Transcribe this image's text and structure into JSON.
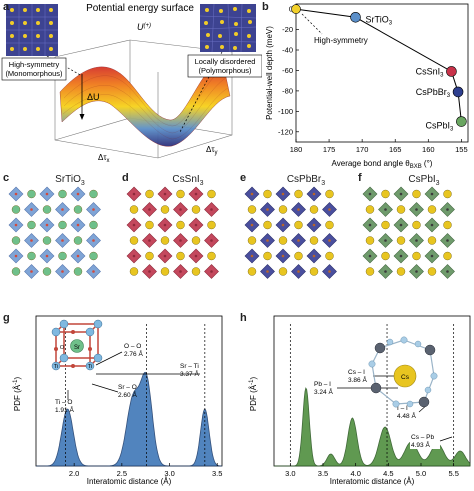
{
  "panel_labels": {
    "a": "a",
    "b": "b",
    "c": "c",
    "d": "d",
    "e": "e",
    "f": "f",
    "g": "g",
    "h": "h"
  },
  "panel_a": {
    "title": "Potential energy surface",
    "left_box_line1": "High-symmetry",
    "left_box_line2": "(Monomorphous)",
    "right_box_line1": "Locally disordered",
    "right_box_line2": "(Polymorphous)",
    "u_label": "U",
    "u_sup": "(+)",
    "delta_u": "ΔU",
    "tau_x": "Δτ",
    "tau_x_sub": "x",
    "tau_y": "Δτ",
    "tau_y_sub": "y"
  },
  "panel_b": {
    "ylabel": "Potential-well depth (meV)",
    "xlabel": "Average bond angle θ",
    "xlabel_sub": "BXB",
    "xlabel_unit": " (°)",
    "high_symmetry_label": "High-symmetry",
    "xticks": [
      "180",
      "175",
      "170",
      "165",
      "160",
      "155"
    ],
    "yticks": [
      "0",
      "-20",
      "-40",
      "-60",
      "-80",
      "-100",
      "-120"
    ]
  },
  "chart_data": {
    "type": "scatter",
    "xlabel": "Average bond angle θBXB (°)",
    "ylabel": "Potential-well depth (meV)",
    "xlim": [
      180,
      154
    ],
    "ylim": [
      -130,
      5
    ],
    "points": [
      {
        "name": "SrTiO3",
        "label": "SrTiO",
        "sub": "3",
        "x": 171,
        "y": -8,
        "color": "#5b8fc9"
      },
      {
        "name": "CsSnI3",
        "label": "CsSnI",
        "sub": "3",
        "x": 156.5,
        "y": -61,
        "color": "#c8334a"
      },
      {
        "name": "CsPbBr3",
        "label": "CsPbBr",
        "sub": "3",
        "x": 155.5,
        "y": -81,
        "color": "#2e3f8f"
      },
      {
        "name": "CsPbI3",
        "label": "CsPbI",
        "sub": "3",
        "x": 155,
        "y": -110,
        "color": "#6aa661"
      }
    ],
    "origin": {
      "x": 180,
      "y": 0,
      "color": "#f2d02a"
    }
  },
  "structures": [
    {
      "name": "SrTiO",
      "sub": "3",
      "oct": "#7fa4d6",
      "edge": "#5a79b0",
      "ball": "#6fc08a",
      "corner": "#d24a3c"
    },
    {
      "name": "CsSnI",
      "sub": "3",
      "oct": "#c4485d",
      "edge": "#8f2a3b",
      "ball": "#e8c520",
      "corner": "#8f2a3b"
    },
    {
      "name": "CsPbBr",
      "sub": "3",
      "oct": "#4a4f9e",
      "edge": "#2d316e",
      "ball": "#e8c520",
      "corner": "#b8652a"
    },
    {
      "name": "CsPbI",
      "sub": "3",
      "oct": "#6f9b6c",
      "edge": "#476b45",
      "ball": "#e8c520",
      "corner": "#3b3b3b"
    }
  ],
  "panel_g": {
    "ylabel": "PDF (Å",
    "ylabel_sup": "-1",
    "ylabel_end": ")",
    "xlabel": "Interatomic distance (Å)",
    "xticks": [
      "2.0",
      "2.5",
      "3.0",
      "3.5"
    ],
    "annotations": [
      {
        "text1": "O – O",
        "text2": "2.76 Å"
      },
      {
        "text1": "Sr – Ti",
        "text2": "3.37 Å"
      },
      {
        "text1": "Sr – O",
        "text2": "2.60 Å"
      },
      {
        "text1": "Ti – O",
        "text2": "1.91 Å"
      }
    ],
    "atom_labels": {
      "sr": "Sr",
      "ti1": "Ti",
      "ti2": "Ti",
      "o": "O"
    }
  },
  "panel_h": {
    "ylabel": "PDF (Å",
    "ylabel_sup": "-1",
    "ylabel_end": ")",
    "xlabel": "Interatomic distance (Å)",
    "xticks": [
      "3.0",
      "3.5",
      "4.0",
      "4.5",
      "5.0",
      "5.5"
    ],
    "annotations": [
      {
        "text1": "Pb – I",
        "text2": "3.24 Å"
      },
      {
        "text1": "Cs – I",
        "text2": "3.86 Å"
      },
      {
        "text1": "I – I",
        "text2": "4.48 Å"
      },
      {
        "text1": "Cs – Pb",
        "text2": "4.93 Å"
      }
    ],
    "atom_labels": {
      "cs": "Cs"
    }
  }
}
